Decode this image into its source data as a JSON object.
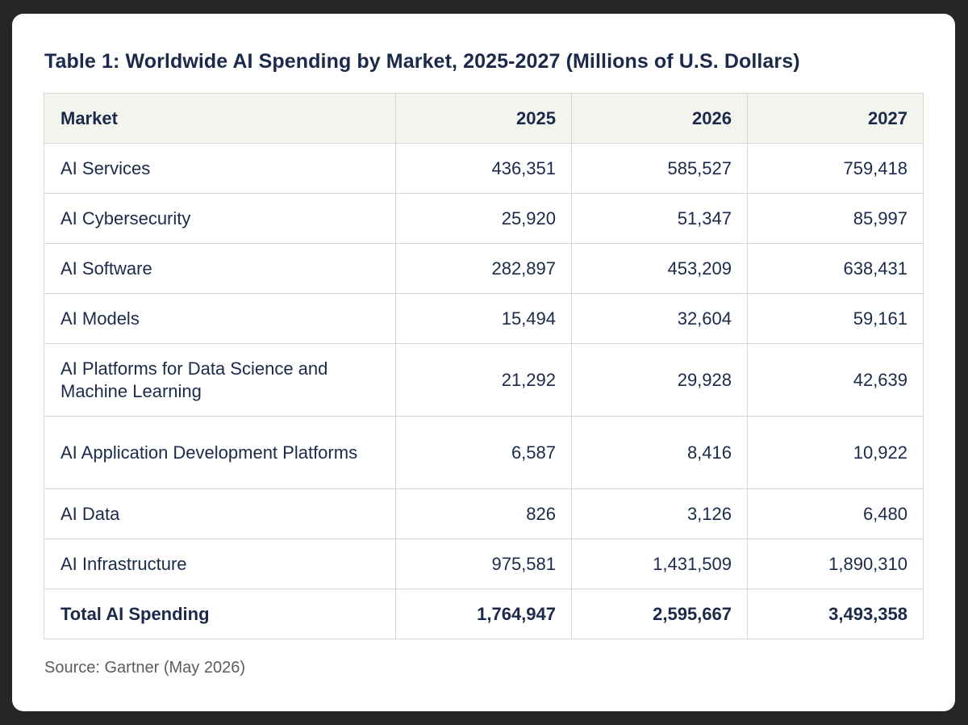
{
  "title": "Table 1: Worldwide AI Spending by Market, 2025-2027 (Millions of U.S. Dollars)",
  "table": {
    "headers": [
      "Market",
      "2025",
      "2026",
      "2027"
    ],
    "rows": [
      {
        "market": "AI Services",
        "v2025": "436,351",
        "v2026": "585,527",
        "v2027": "759,418"
      },
      {
        "market": "AI Cybersecurity",
        "v2025": "25,920",
        "v2026": "51,347",
        "v2027": "85,997"
      },
      {
        "market": "AI Software",
        "v2025": "282,897",
        "v2026": "453,209",
        "v2027": "638,431"
      },
      {
        "market": "AI Models",
        "v2025": "15,494",
        "v2026": "32,604",
        "v2027": "59,161"
      },
      {
        "market": "AI Platforms for Data Science and Machine Learning",
        "v2025": "21,292",
        "v2026": "29,928",
        "v2027": "42,639"
      },
      {
        "market": "AI Application Development Platforms",
        "v2025": "6,587",
        "v2026": "8,416",
        "v2027": "10,922"
      },
      {
        "market": "AI Data",
        "v2025": "826",
        "v2026": "3,126",
        "v2027": "6,480"
      },
      {
        "market": "AI Infrastructure",
        "v2025": "975,581",
        "v2026": "1,431,509",
        "v2027": "1,890,310"
      }
    ],
    "total": {
      "market": "Total AI Spending",
      "v2025": "1,764,947",
      "v2026": "2,595,667",
      "v2027": "3,493,358"
    }
  },
  "source": "Source: Gartner (May 2026)",
  "colors": {
    "background": "#262626",
    "card": "#ffffff",
    "text": "#1b2a4a",
    "header_fill": "#f4f4ef",
    "border": "#d6d6d6",
    "source_text": "#5c5c5c"
  }
}
